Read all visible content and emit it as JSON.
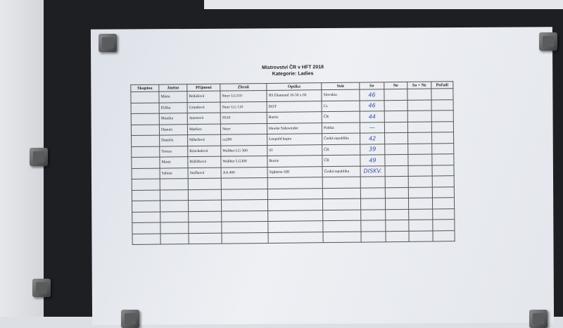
{
  "document": {
    "title": "Mistrovství ČR v HFT 2018",
    "subtitle": "Kategorie: Ladies",
    "columns": [
      "Skupina",
      "Jméno",
      "Příjmení",
      "Zbraň",
      "Optika",
      "Stát",
      "So",
      "Ne",
      "So + Ne",
      "Pořadí"
    ],
    "rows": [
      {
        "skupina": "",
        "jmeno": "Mária",
        "prijmeni": "Reňušová",
        "zbran": "Steyr LG110",
        "optika": "NS Diamond 10-50 x 60",
        "stat": "Slovakia",
        "so": "46",
        "ne": "",
        "sone": "",
        "poradi": ""
      },
      {
        "skupina": "",
        "jmeno": "Eliška",
        "prijmeni": "Grmelová",
        "zbran": "Steyr LG 110",
        "optika": "DOT",
        "stat": "Cz",
        "so": "46",
        "ne": "",
        "sone": "",
        "poradi": ""
      },
      {
        "skupina": "",
        "jmeno": "Monika",
        "prijmeni": "Janosová",
        "zbran": "SS10",
        "optika": "Burris",
        "stat": "ČR",
        "so": "44",
        "ne": "",
        "sone": "",
        "poradi": ""
      },
      {
        "skupina": "",
        "jmeno": "Danuta",
        "prijmeni": "Markiss",
        "zbran": "Steyr",
        "optika": "Hawke Sidewinder",
        "stat": "Polska",
        "so": "—",
        "ne": "",
        "sone": "",
        "poradi": ""
      },
      {
        "skupina": "",
        "jmeno": "Daniela",
        "prijmeni": "Mikešová",
        "zbran": "cz200",
        "optika": "Leupold kopie",
        "stat": "Česká republika",
        "so": "42",
        "ne": "",
        "sone": "",
        "poradi": ""
      },
      {
        "skupina": "",
        "jmeno": "Tereza",
        "prijmeni": "Ritschelová",
        "zbran": "Walther LG 300",
        "optika": "SI",
        "stat": "ČR",
        "so": "39",
        "ne": "",
        "sone": "",
        "poradi": ""
      },
      {
        "skupina": "",
        "jmeno": "Marta",
        "prijmeni": "Růžičková",
        "zbran": "Walther LG300",
        "optika": "Burris",
        "stat": "ČR",
        "so": "49",
        "ne": "",
        "sone": "",
        "poradi": ""
      },
      {
        "skupina": "",
        "jmeno": "Sabina",
        "prijmeni": "Stočková",
        "zbran": "AA 400",
        "optika": "Sightron SIII",
        "stat": "Česká republika",
        "so": "DISKV.",
        "ne": "",
        "sone": "",
        "poradi": ""
      }
    ],
    "empty_rows": 6
  }
}
